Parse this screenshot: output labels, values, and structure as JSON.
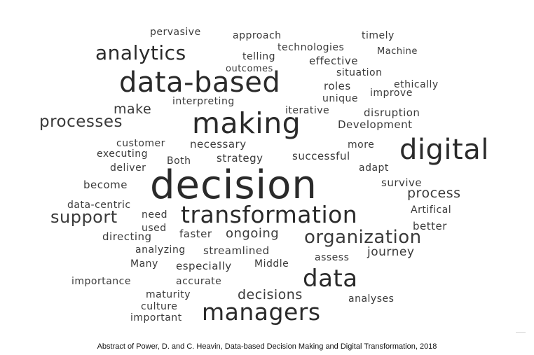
{
  "words": [
    "pervasive",
    "approach",
    "timely",
    "analytics",
    "technologies",
    "telling",
    "Machine",
    "effective",
    "outcomes",
    "situation",
    "data-based",
    "roles",
    "ethically",
    "improve",
    "unique",
    "interpreting",
    "make",
    "iterative",
    "disruption",
    "processes",
    "making",
    "Development",
    "customer",
    "necessary",
    "more",
    "digital",
    "executing",
    "Both",
    "strategy",
    "successful",
    "deliver",
    "adapt",
    "become",
    "decision",
    "survive",
    "process",
    "data-centric",
    "Artifical",
    "need",
    "support",
    "transformation",
    "used",
    "better",
    "directing",
    "faster",
    "ongoing",
    "organization",
    "analyzing",
    "streamlined",
    "journey",
    "assess",
    "Many",
    "especially",
    "Middle",
    "data",
    "importance",
    "accurate",
    "maturity",
    "decisions",
    "analyses",
    "culture",
    "important",
    "managers"
  ],
  "caption": "Abstract of Power, D. and C. Heavin,  Data-based Decision Making and Digital Transformation, 2018"
}
